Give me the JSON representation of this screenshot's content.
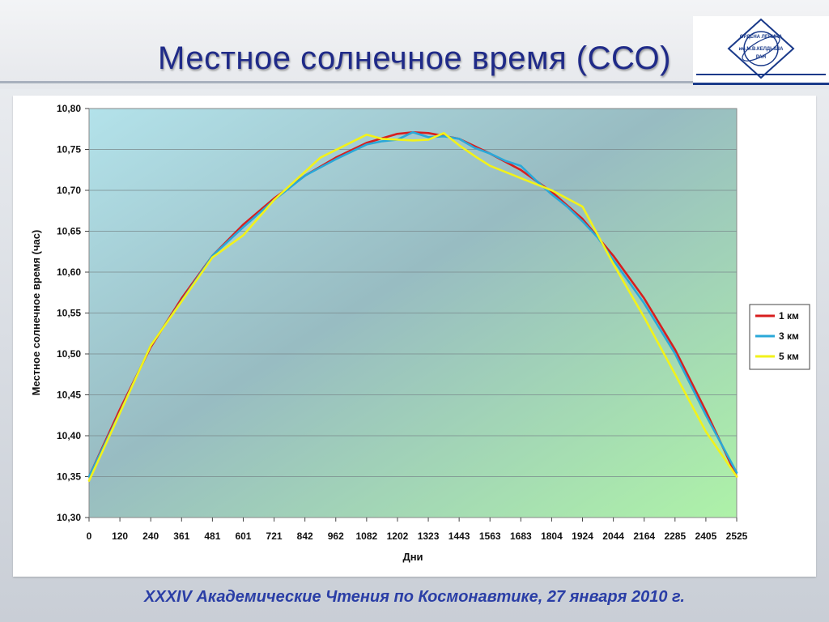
{
  "slide": {
    "title": "Местное солнечное время (ССО)",
    "footer": "XXXIV  Академические Чтения по Космонавтике,  27 января 2010 г.",
    "logo_text": [
      "ОРДЕНА ЛЕНИНА",
      "им.М.В.КЕЛДЫША",
      "РАН"
    ]
  },
  "chart_data": {
    "type": "line",
    "xlabel": "Дни",
    "ylabel": "Местное  солнечное  время  (час)",
    "x_tick_labels": [
      "0",
      "120",
      "240",
      "361",
      "481",
      "601",
      "721",
      "842",
      "962",
      "1082",
      "1202",
      "1323",
      "1443",
      "1563",
      "1683",
      "1804",
      "1924",
      "2044",
      "2164",
      "2285",
      "2405",
      "2525"
    ],
    "y_ticks": [
      10.3,
      10.35,
      10.4,
      10.45,
      10.5,
      10.55,
      10.6,
      10.65,
      10.7,
      10.75,
      10.8
    ],
    "y_tick_labels": [
      "10,30",
      "10,35",
      "10,40",
      "10,45",
      "10,50",
      "10,55",
      "10,60",
      "10,65",
      "10,70",
      "10,75",
      "10,80"
    ],
    "xlim": [
      0,
      2525
    ],
    "ylim": [
      10.3,
      10.8
    ],
    "grid": true,
    "legend_position": "right",
    "series": [
      {
        "name": "1 км",
        "color": "#d81e1e",
        "x": [
          0,
          120,
          240,
          361,
          481,
          601,
          721,
          842,
          962,
          1082,
          1202,
          1262,
          1323,
          1443,
          1563,
          1683,
          1804,
          1924,
          2044,
          2164,
          2285,
          2405,
          2525
        ],
        "y": [
          10.35,
          10.432,
          10.508,
          10.568,
          10.62,
          10.658,
          10.69,
          10.718,
          10.74,
          10.758,
          10.769,
          10.771,
          10.77,
          10.763,
          10.745,
          10.725,
          10.698,
          10.665,
          10.62,
          10.568,
          10.505,
          10.43,
          10.35
        ]
      },
      {
        "name": "3 км",
        "color": "#2aa8d8",
        "x": [
          0,
          120,
          240,
          361,
          481,
          601,
          721,
          842,
          962,
          1082,
          1143,
          1202,
          1262,
          1323,
          1383,
          1443,
          1503,
          1563,
          1623,
          1683,
          1743,
          1804,
          1864,
          1924,
          1984,
          2044,
          2164,
          2285,
          2405,
          2525
        ],
        "y": [
          10.35,
          10.428,
          10.51,
          10.565,
          10.62,
          10.655,
          10.688,
          10.718,
          10.738,
          10.756,
          10.76,
          10.762,
          10.771,
          10.765,
          10.766,
          10.763,
          10.752,
          10.745,
          10.736,
          10.73,
          10.712,
          10.695,
          10.68,
          10.662,
          10.642,
          10.615,
          10.562,
          10.5,
          10.425,
          10.355
        ]
      },
      {
        "name": "5 км",
        "color": "#f2f21a",
        "x": [
          0,
          240,
          481,
          601,
          721,
          902,
          1082,
          1142,
          1262,
          1323,
          1383,
          1443,
          1503,
          1563,
          1683,
          1804,
          1924,
          2044,
          2164,
          2285,
          2405,
          2525
        ],
        "y": [
          10.345,
          10.51,
          10.618,
          10.645,
          10.688,
          10.74,
          10.768,
          10.763,
          10.761,
          10.762,
          10.77,
          10.755,
          10.742,
          10.73,
          10.715,
          10.7,
          10.68,
          10.61,
          10.545,
          10.475,
          10.405,
          10.35
        ]
      }
    ]
  }
}
